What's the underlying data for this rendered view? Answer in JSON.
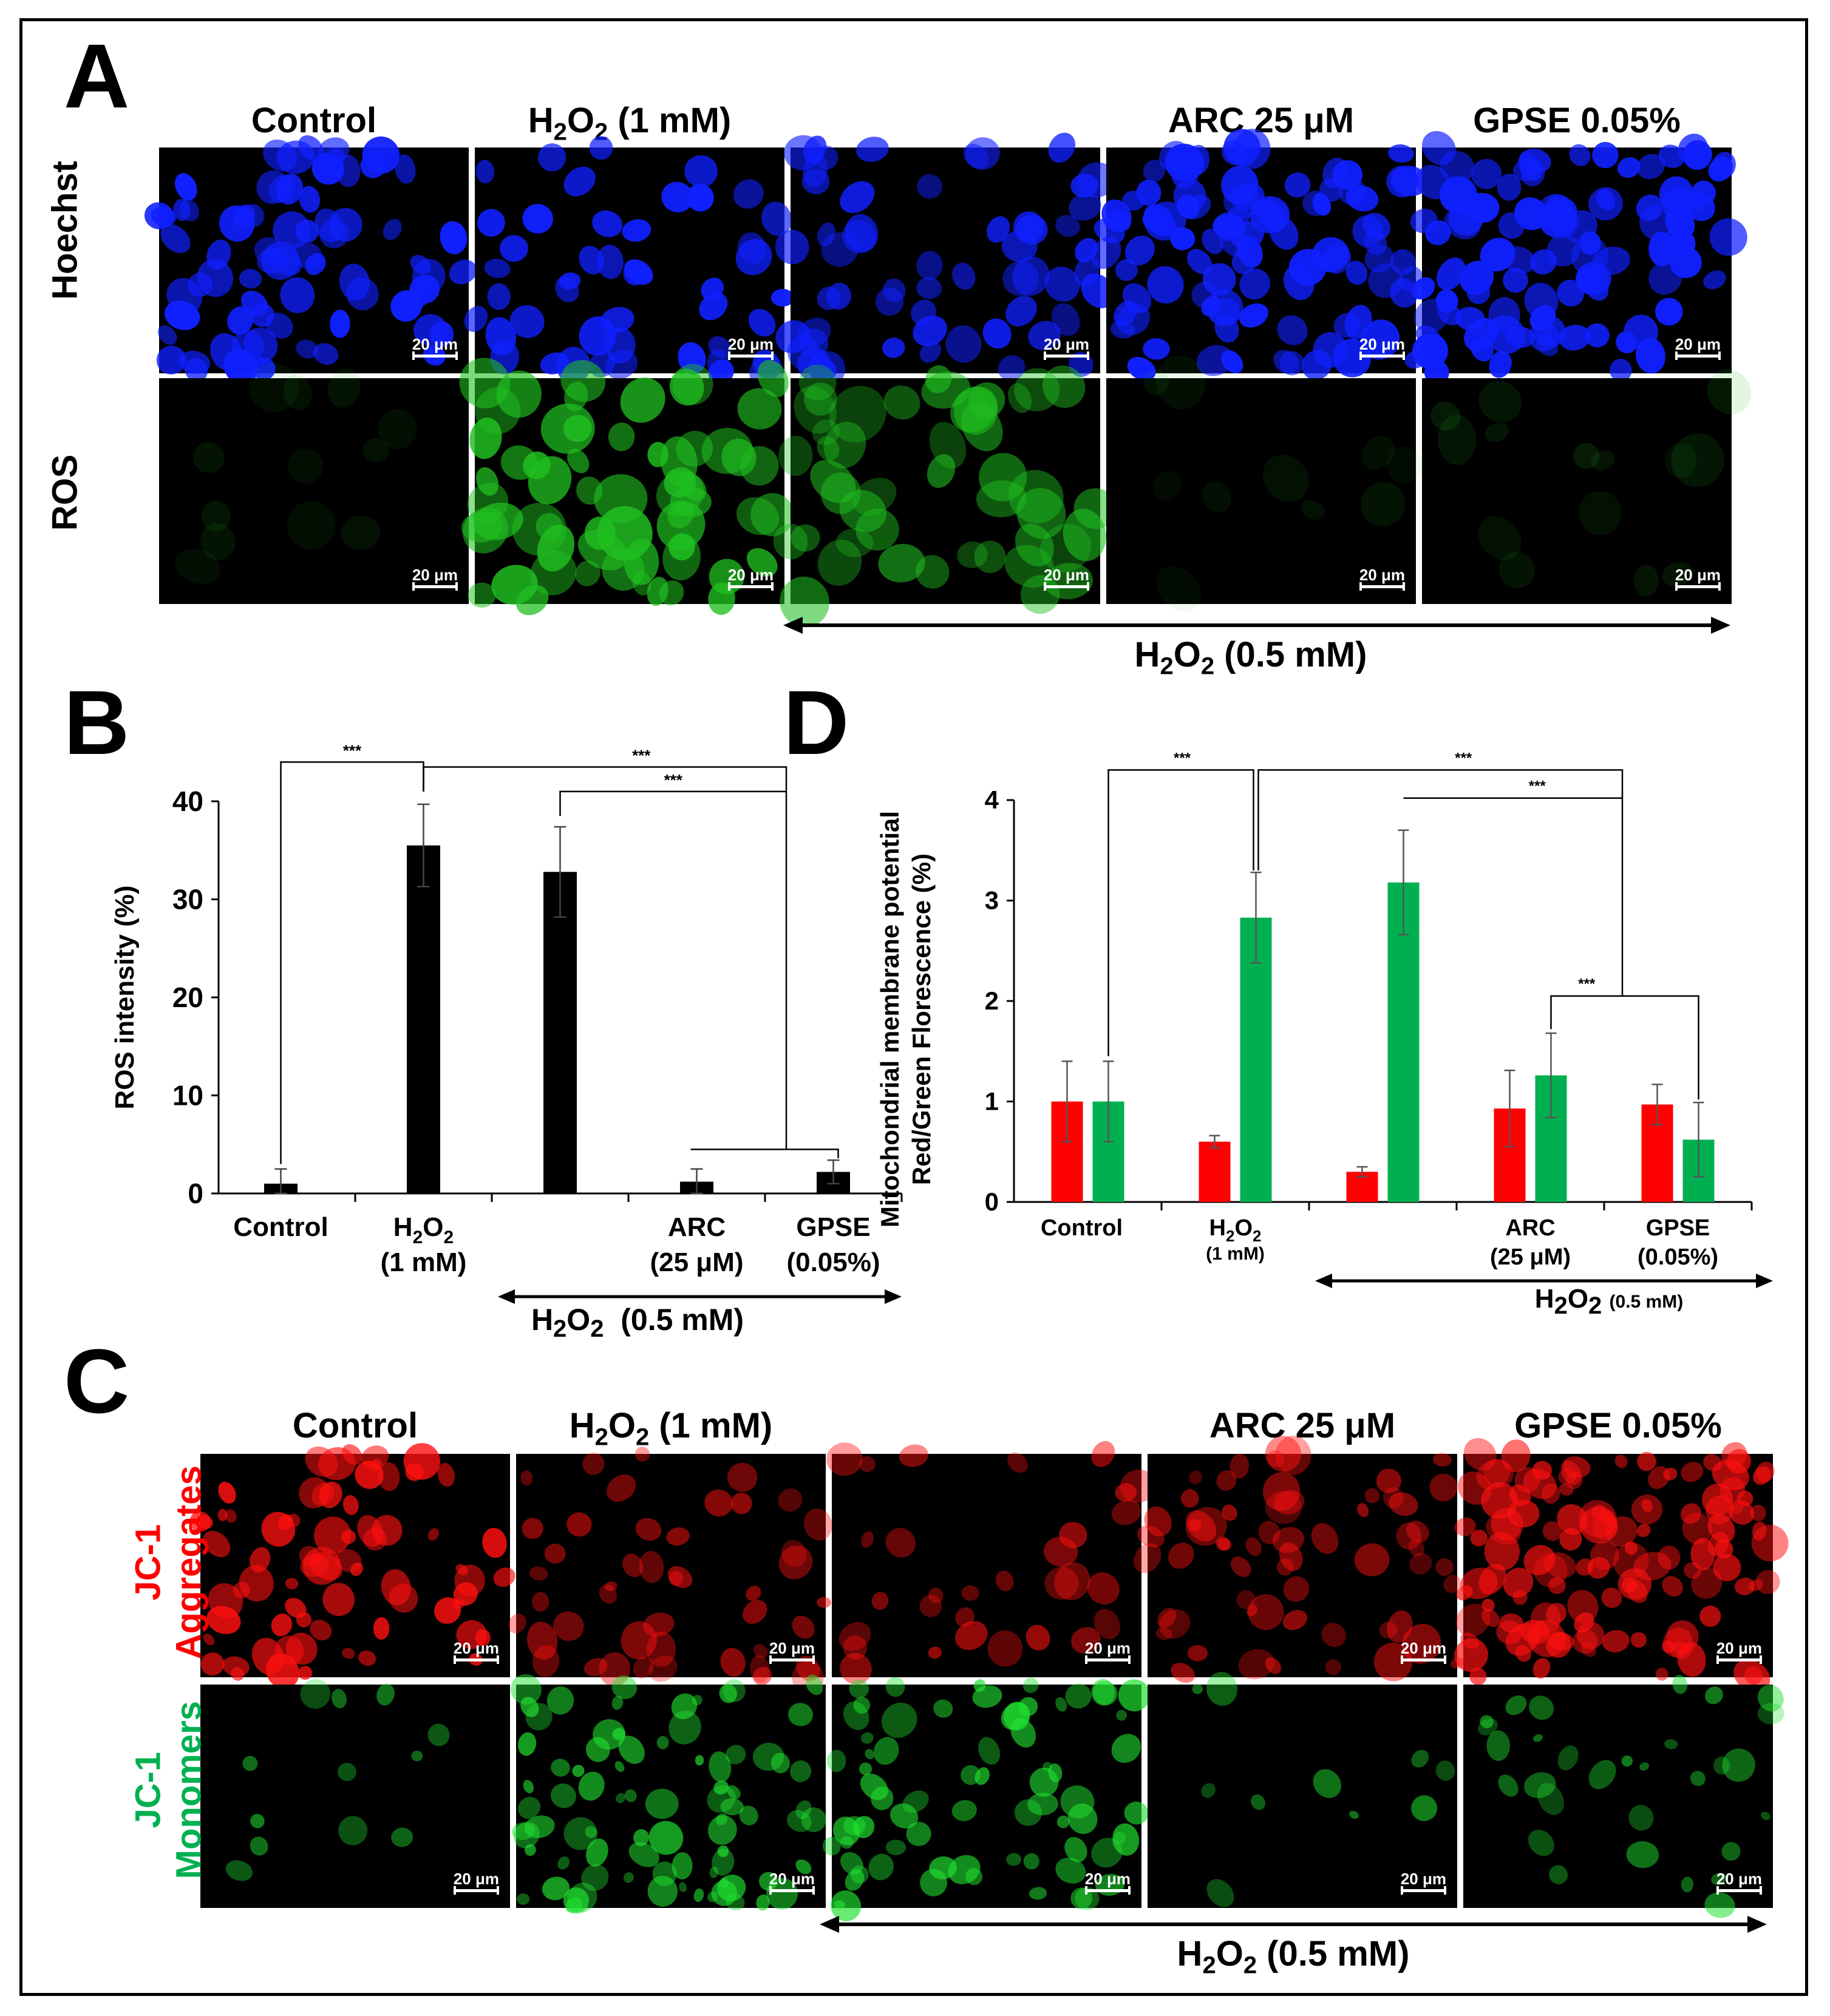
{
  "panel_a": {
    "letter": "A",
    "columns": [
      "Control",
      "H2O2 (1 mM)",
      "",
      "ARC 25 μM",
      "GPSE 0.05%"
    ],
    "row_labels": [
      "Hoechst",
      "ROS"
    ],
    "scale_bar": "20 μm",
    "bracket_label": "H2O2 (0.5 mM)"
  },
  "panel_c": {
    "letter": "C",
    "columns": [
      "Control",
      "H2O2 (1 mM)",
      "",
      "ARC 25 μM",
      "GPSE 0.05%"
    ],
    "row_labels": [
      [
        "JC-1",
        "Aggregates"
      ],
      [
        "JC-1",
        "Monomers"
      ]
    ],
    "scale_bar": "20 μm",
    "bracket_label": "H2O2 (0.5 mM)"
  },
  "panel_b": {
    "letter": "B",
    "bracket_label": "H2O2  (0.5 mM)"
  },
  "panel_d": {
    "letter": "D",
    "bracket_label": "H2O2 (0.5 mM)"
  },
  "chart_data": [
    {
      "panel": "B",
      "type": "bar",
      "ylabel": "ROS intensity (%)",
      "ylim": [
        0,
        40
      ],
      "yticks": [
        0,
        10,
        20,
        30,
        40
      ],
      "categories": [
        "Control",
        "H2O2 (1 mM)",
        "",
        "ARC (25 μM)",
        "GPSE (0.05%)"
      ],
      "values": [
        1.0,
        35.5,
        32.8,
        1.2,
        2.2
      ],
      "errors": [
        1.5,
        4.2,
        4.6,
        1.3,
        1.2
      ],
      "color": "#000000",
      "significance": [
        "***",
        "***",
        "***"
      ]
    },
    {
      "panel": "D",
      "type": "bar",
      "ylabel": [
        "Mitochondrial membrane potential",
        "Red/Green Florescence (%)"
      ],
      "ylim": [
        0,
        4
      ],
      "yticks": [
        0,
        1,
        2,
        3,
        4
      ],
      "categories": [
        "Control",
        "H2O2 (1 mM)",
        "",
        "ARC (25 μM)",
        "GPSE (0.05%)"
      ],
      "series": [
        {
          "values": [
            1.0,
            0.6,
            0.3,
            0.93,
            0.97
          ],
          "errors": [
            0.4,
            0.06,
            0.05,
            0.38,
            0.2
          ],
          "color": "#ff0000"
        },
        {
          "values": [
            1.0,
            2.83,
            3.18,
            1.26,
            0.62
          ],
          "errors": [
            0.4,
            0.45,
            0.52,
            0.42,
            0.37
          ],
          "color": "#00b050"
        }
      ],
      "significance": [
        "***",
        "***",
        "***",
        "***"
      ]
    }
  ]
}
